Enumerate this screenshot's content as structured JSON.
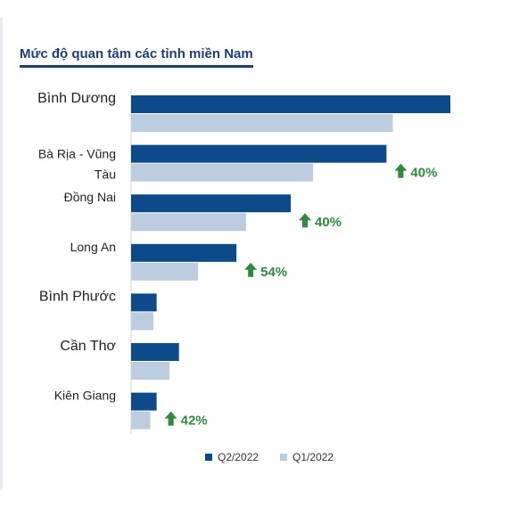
{
  "title": "Mức độ quan tâm các tỉnh miền Nam",
  "colors": {
    "q2": "#0d4a8a",
    "q1": "#bccde0",
    "growth": "#2e8b3e",
    "axis": "#cfd8e3"
  },
  "chart_data": {
    "type": "bar",
    "orientation": "horizontal",
    "categories": [
      "Bình Dương",
      "Bà Rịa - Vũng Tàu",
      "Đồng Nai",
      "Long An",
      "Bình Phước",
      "Cần Thơ",
      "Kiên Giang"
    ],
    "series": [
      {
        "name": "Q2/2022",
        "values": [
          100,
          80,
          50,
          33,
          8,
          15,
          8
        ]
      },
      {
        "name": "Q1/2022",
        "values": [
          82,
          57,
          36,
          21,
          7,
          12,
          6
        ]
      }
    ],
    "growth": [
      "",
      "40%",
      "40%",
      "54%",
      "",
      "",
      "42%"
    ],
    "xlim": [
      0,
      100
    ],
    "grid": false,
    "legend_position": "bottom"
  }
}
